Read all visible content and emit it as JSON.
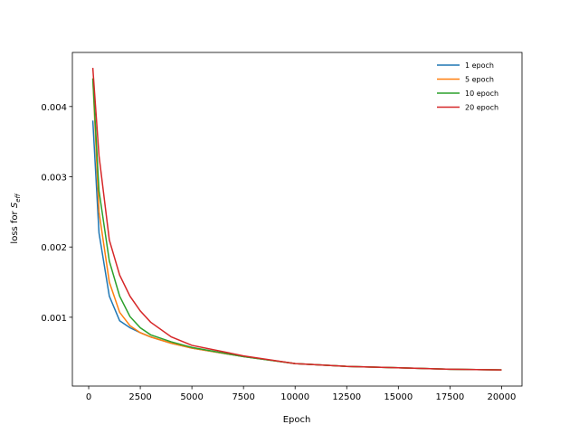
{
  "chart_data": {
    "type": "line",
    "xlabel": "Epoch",
    "ylabel": {
      "text": "loss for",
      "symbol": "S",
      "subscript": "eff"
    },
    "x": [
      200,
      500,
      1000,
      1500,
      2000,
      2500,
      3000,
      4000,
      5000,
      7500,
      10000,
      12500,
      15000,
      17500,
      20000
    ],
    "series": [
      {
        "name": "1 epoch",
        "color": "#1f77b4",
        "values": [
          0.0038,
          0.0022,
          0.0013,
          0.00095,
          0.00085,
          0.00078,
          0.00072,
          0.00063,
          0.00056,
          0.00044,
          0.00034,
          0.0003,
          0.00028,
          0.00026,
          0.00025
        ]
      },
      {
        "name": "5 epoch",
        "color": "#ff7f0e",
        "values": [
          0.0044,
          0.0025,
          0.0015,
          0.00107,
          0.00088,
          0.00078,
          0.00072,
          0.00063,
          0.00056,
          0.00044,
          0.00034,
          0.0003,
          0.00028,
          0.00026,
          0.00025
        ]
      },
      {
        "name": "10 epoch",
        "color": "#2ca02c",
        "values": [
          0.0044,
          0.0028,
          0.0018,
          0.0013,
          0.00101,
          0.00085,
          0.00075,
          0.00065,
          0.00057,
          0.00044,
          0.00034,
          0.0003,
          0.00028,
          0.00026,
          0.00025
        ]
      },
      {
        "name": "20 epoch",
        "color": "#d62728",
        "values": [
          0.00455,
          0.0033,
          0.0021,
          0.0016,
          0.0013,
          0.00109,
          0.00093,
          0.00072,
          0.0006,
          0.00045,
          0.00034,
          0.0003,
          0.00028,
          0.00026,
          0.00025
        ]
      }
    ],
    "xlim": [
      -790,
      20990
    ],
    "ylim": [
      2e-05,
      0.00477
    ],
    "xticks": [
      0,
      2500,
      5000,
      7500,
      10000,
      12500,
      15000,
      17500,
      20000
    ],
    "yticks": [
      0.001,
      0.002,
      0.003,
      0.004
    ],
    "legend": "upper right"
  }
}
